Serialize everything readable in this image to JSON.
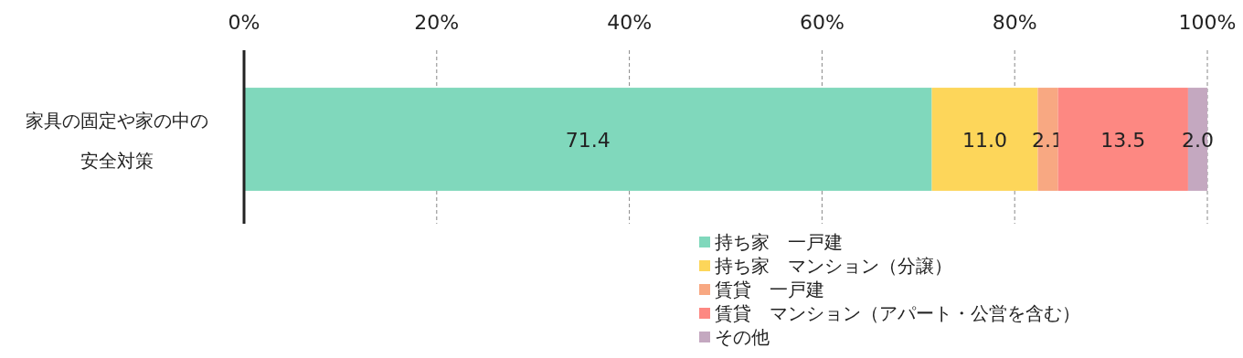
{
  "chart_data": {
    "type": "bar",
    "orientation": "horizontal",
    "stacked": true,
    "categories": [
      "家具の固定や家の中の安全対策"
    ],
    "series": [
      {
        "name": "持ち家　一戸建",
        "color": "#80d8bc",
        "values": [
          71.4
        ],
        "value_labels": [
          "71.4"
        ]
      },
      {
        "name": "持ち家　マンション（分譲）",
        "color": "#fdd65a",
        "values": [
          11.0
        ],
        "value_labels": [
          "11.0"
        ]
      },
      {
        "name": "賃貸　一戸建",
        "color": "#f8a882",
        "values": [
          2.1
        ],
        "value_labels": [
          "2.1"
        ]
      },
      {
        "name": "賃貸　マンション（アパート・公営を含む）",
        "color": "#fd8882",
        "values": [
          13.5
        ],
        "value_labels": [
          "13.5"
        ]
      },
      {
        "name": "その他",
        "color": "#c4a8c0",
        "values": [
          2.0
        ],
        "value_labels": [
          "2.0"
        ]
      }
    ],
    "xlim": [
      0,
      100
    ],
    "xticks": [
      {
        "value": 0,
        "label": "0%"
      },
      {
        "value": 20,
        "label": "20%"
      },
      {
        "value": 40,
        "label": "40%"
      },
      {
        "value": 60,
        "label": "60%"
      },
      {
        "value": 80,
        "label": "80%"
      },
      {
        "value": 100,
        "label": "100%"
      }
    ],
    "grid": "x",
    "legend": "bottom"
  }
}
